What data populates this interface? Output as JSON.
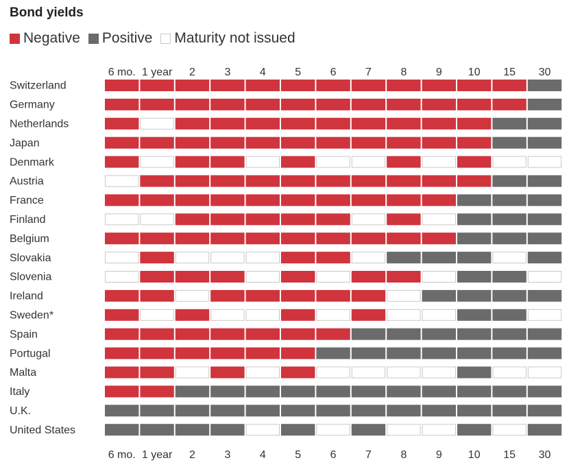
{
  "title": "Bond yields",
  "legend": [
    {
      "label": "Negative",
      "status": "negative"
    },
    {
      "label": "Positive",
      "status": "positive"
    },
    {
      "label": "Maturity not issued",
      "status": "not_issued"
    }
  ],
  "colors": {
    "negative": "#d0343d",
    "positive": "#6b6b6b",
    "not_issued_fill": "#ffffff",
    "not_issued_border": "#c8c8c8"
  },
  "chart_data": {
    "type": "heatmap",
    "title": "Bond yields",
    "columns": [
      "6 mo.",
      "1 year",
      "2",
      "3",
      "4",
      "5",
      "6",
      "7",
      "8",
      "9",
      "10",
      "15",
      "30"
    ],
    "legend_mapping": {
      "N": "Negative",
      "P": "Positive",
      "X": "Maturity not issued"
    },
    "rows": [
      {
        "country": "Switzerland",
        "values": [
          "N",
          "N",
          "N",
          "N",
          "N",
          "N",
          "N",
          "N",
          "N",
          "N",
          "N",
          "N",
          "P"
        ]
      },
      {
        "country": "Germany",
        "values": [
          "N",
          "N",
          "N",
          "N",
          "N",
          "N",
          "N",
          "N",
          "N",
          "N",
          "N",
          "N",
          "P"
        ]
      },
      {
        "country": "Netherlands",
        "values": [
          "N",
          "X",
          "N",
          "N",
          "N",
          "N",
          "N",
          "N",
          "N",
          "N",
          "N",
          "P",
          "P"
        ]
      },
      {
        "country": "Japan",
        "values": [
          "N",
          "N",
          "N",
          "N",
          "N",
          "N",
          "N",
          "N",
          "N",
          "N",
          "N",
          "P",
          "P"
        ]
      },
      {
        "country": "Denmark",
        "values": [
          "N",
          "X",
          "N",
          "N",
          "X",
          "N",
          "X",
          "X",
          "N",
          "X",
          "N",
          "X",
          "X"
        ]
      },
      {
        "country": "Austria",
        "values": [
          "X",
          "N",
          "N",
          "N",
          "N",
          "N",
          "N",
          "N",
          "N",
          "N",
          "N",
          "P",
          "P"
        ]
      },
      {
        "country": "France",
        "values": [
          "N",
          "N",
          "N",
          "N",
          "N",
          "N",
          "N",
          "N",
          "N",
          "N",
          "P",
          "P",
          "P"
        ]
      },
      {
        "country": "Finland",
        "values": [
          "X",
          "X",
          "N",
          "N",
          "N",
          "N",
          "N",
          "X",
          "N",
          "X",
          "P",
          "P",
          "P"
        ]
      },
      {
        "country": "Belgium",
        "values": [
          "N",
          "N",
          "N",
          "N",
          "N",
          "N",
          "N",
          "N",
          "N",
          "N",
          "P",
          "P",
          "P"
        ]
      },
      {
        "country": "Slovakia",
        "values": [
          "X",
          "N",
          "X",
          "X",
          "X",
          "N",
          "N",
          "X",
          "P",
          "P",
          "P",
          "X",
          "P"
        ]
      },
      {
        "country": "Slovenia",
        "values": [
          "X",
          "N",
          "N",
          "N",
          "X",
          "N",
          "X",
          "N",
          "N",
          "X",
          "P",
          "P",
          "X"
        ]
      },
      {
        "country": "Ireland",
        "values": [
          "N",
          "N",
          "X",
          "N",
          "N",
          "N",
          "N",
          "N",
          "X",
          "P",
          "P",
          "P",
          "P"
        ]
      },
      {
        "country": "Sweden*",
        "values": [
          "N",
          "X",
          "N",
          "X",
          "X",
          "N",
          "X",
          "N",
          "X",
          "X",
          "P",
          "P",
          "X"
        ]
      },
      {
        "country": "Spain",
        "values": [
          "N",
          "N",
          "N",
          "N",
          "N",
          "N",
          "N",
          "P",
          "P",
          "P",
          "P",
          "P",
          "P"
        ]
      },
      {
        "country": "Portugal",
        "values": [
          "N",
          "N",
          "N",
          "N",
          "N",
          "N",
          "P",
          "P",
          "P",
          "P",
          "P",
          "P",
          "P"
        ]
      },
      {
        "country": "Malta",
        "values": [
          "N",
          "N",
          "X",
          "N",
          "X",
          "N",
          "X",
          "X",
          "X",
          "X",
          "P",
          "X",
          "X"
        ]
      },
      {
        "country": "Italy",
        "values": [
          "N",
          "N",
          "P",
          "P",
          "P",
          "P",
          "P",
          "P",
          "P",
          "P",
          "P",
          "P",
          "P"
        ]
      },
      {
        "country": "U.K.",
        "values": [
          "P",
          "P",
          "P",
          "P",
          "P",
          "P",
          "P",
          "P",
          "P",
          "P",
          "P",
          "P",
          "P"
        ]
      },
      {
        "country": "United States",
        "values": [
          "P",
          "P",
          "P",
          "P",
          "X",
          "P",
          "X",
          "P",
          "X",
          "X",
          "P",
          "X",
          "P"
        ]
      }
    ]
  }
}
